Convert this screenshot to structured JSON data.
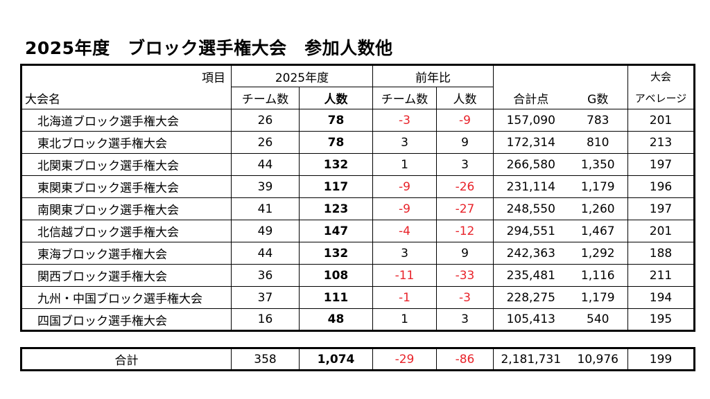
{
  "title": "2025年度　ブロック選手権大会　参加人数他",
  "header": {
    "item": "項目",
    "year": "2025年度",
    "prev": "前年比",
    "taikai_name": "大会名",
    "teams": "チーム数",
    "people": "人数",
    "prev_teams": "チーム数",
    "prev_people": "人数",
    "total_points": "合計点",
    "g_count": "G数",
    "avg_top": "大会",
    "avg_bottom": "アベレージ"
  },
  "rows": [
    {
      "name": "北海道ブロック選手権大会",
      "teams": "26",
      "people": "78",
      "d_teams": "-3",
      "d_people": "-9",
      "points": "157,090",
      "g": "783",
      "avg": "201"
    },
    {
      "name": "東北ブロック選手権大会",
      "teams": "26",
      "people": "78",
      "d_teams": "3",
      "d_people": "9",
      "points": "172,314",
      "g": "810",
      "avg": "213"
    },
    {
      "name": "北関東ブロック選手権大会",
      "teams": "44",
      "people": "132",
      "d_teams": "1",
      "d_people": "3",
      "points": "266,580",
      "g": "1,350",
      "avg": "197"
    },
    {
      "name": "東関東ブロック選手権大会",
      "teams": "39",
      "people": "117",
      "d_teams": "-9",
      "d_people": "-26",
      "points": "231,114",
      "g": "1,179",
      "avg": "196"
    },
    {
      "name": "南関東ブロック選手権大会",
      "teams": "41",
      "people": "123",
      "d_teams": "-9",
      "d_people": "-27",
      "points": "248,550",
      "g": "1,260",
      "avg": "197"
    },
    {
      "name": "北信越ブロック選手権大会",
      "teams": "49",
      "people": "147",
      "d_teams": "-4",
      "d_people": "-12",
      "points": "294,551",
      "g": "1,467",
      "avg": "201"
    },
    {
      "name": "東海ブロック選手権大会",
      "teams": "44",
      "people": "132",
      "d_teams": "3",
      "d_people": "9",
      "points": "242,363",
      "g": "1,292",
      "avg": "188"
    },
    {
      "name": "関西ブロック選手権大会",
      "teams": "36",
      "people": "108",
      "d_teams": "-11",
      "d_people": "-33",
      "points": "235,481",
      "g": "1,116",
      "avg": "211"
    },
    {
      "name": "九州・中国ブロック選手権大会",
      "teams": "37",
      "people": "111",
      "d_teams": "-1",
      "d_people": "-3",
      "points": "228,275",
      "g": "1,179",
      "avg": "194"
    },
    {
      "name": "四国ブロック選手権大会",
      "teams": "16",
      "people": "48",
      "d_teams": "1",
      "d_people": "3",
      "points": "105,413",
      "g": "540",
      "avg": "195"
    }
  ],
  "total": {
    "label": "合計",
    "teams": "358",
    "people": "1,074",
    "d_teams": "-29",
    "d_people": "-86",
    "points": "2,181,731",
    "g": "10,976",
    "avg": "199"
  },
  "colors": {
    "negative": "#e8232a",
    "text": "#000000"
  }
}
